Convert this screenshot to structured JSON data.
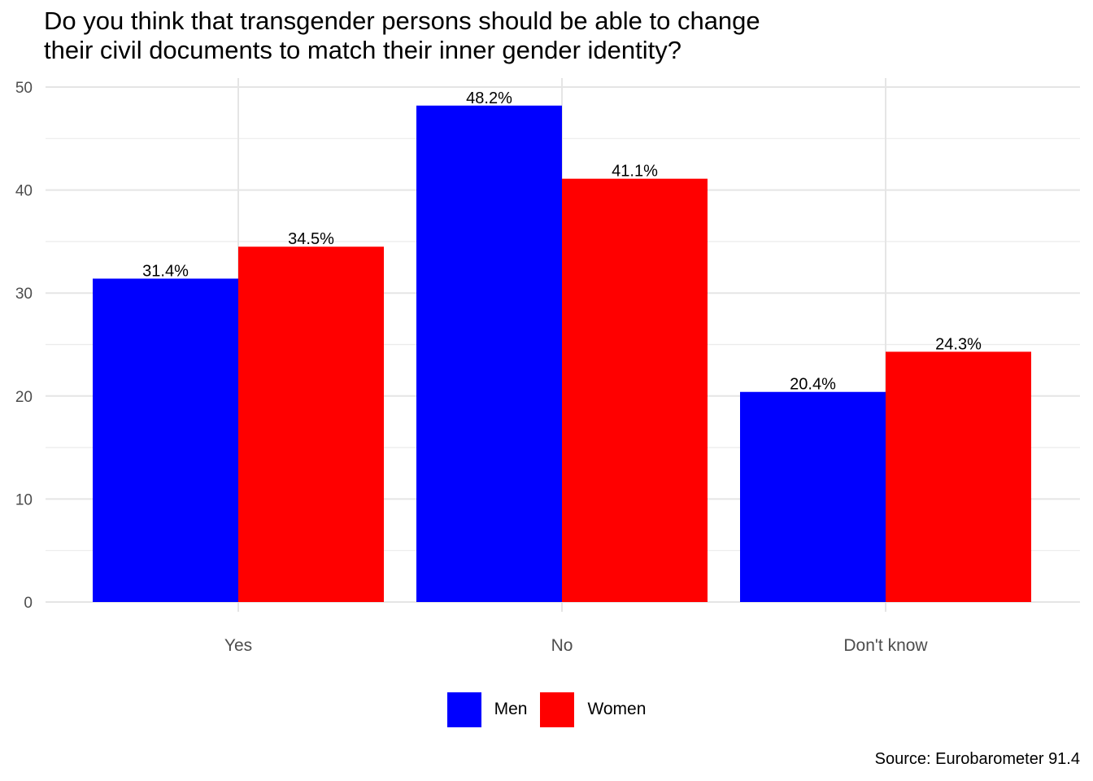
{
  "chart_data": {
    "type": "bar",
    "title_lines": [
      "Do you think that transgender persons should be able to change",
      "their civil documents to match their inner gender identity?"
    ],
    "categories": [
      "Yes",
      "No",
      "Don't know"
    ],
    "series": [
      {
        "name": "Men",
        "color": "#0000ff",
        "values": [
          31.4,
          48.2,
          20.4
        ],
        "labels": [
          "31.4%",
          "48.2%",
          "20.4%"
        ]
      },
      {
        "name": "Women",
        "color": "#ff0000",
        "values": [
          34.5,
          41.1,
          24.3
        ],
        "labels": [
          "34.5%",
          "41.1%",
          "24.3%"
        ]
      }
    ],
    "ylim": [
      0,
      50
    ],
    "yticks": [
      0,
      10,
      20,
      30,
      40,
      50
    ],
    "grid": true,
    "legend_position": "bottom",
    "caption": "Source: Eurobarometer 91.4"
  }
}
